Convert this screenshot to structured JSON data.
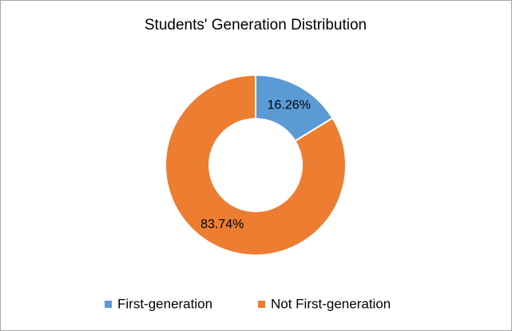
{
  "chart_data": {
    "type": "donut",
    "title": "Students' Generation Distribution",
    "categories": [
      "First-generation",
      "Not First-generation"
    ],
    "values": [
      16.26,
      83.74
    ],
    "value_labels": [
      "16.26%",
      "83.74%"
    ],
    "colors": [
      "#5b9bd5",
      "#ed7d31"
    ],
    "legend": "bottom"
  }
}
